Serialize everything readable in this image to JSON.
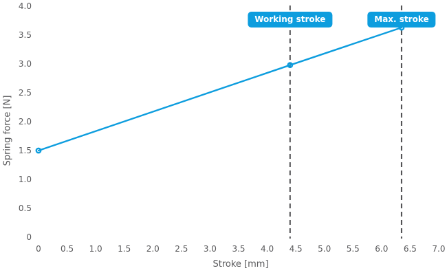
{
  "colors": {
    "accent_blue": "#0d9dde",
    "text_gray": "#58585a",
    "dash_gray": "#505052",
    "badge_text": "#ffffff",
    "background": "#ffffff"
  },
  "chart_data": {
    "type": "line",
    "title": "",
    "xlabel": "Stroke [mm]",
    "ylabel": "Spring force [N]",
    "xlim": [
      0,
      7.0
    ],
    "ylim": [
      0,
      4.0
    ],
    "grid": false,
    "legend": "none",
    "x_ticks": {
      "labels": [
        "0",
        "0.5",
        "1.0",
        "1.5",
        "2.0",
        "2.5",
        "3.0",
        "3.5",
        "4.0",
        "4.5",
        "5.0",
        "5.5",
        "6.0",
        "6.5",
        "7.0"
      ],
      "values": [
        0,
        0.5,
        1.0,
        1.5,
        2.0,
        2.5,
        3.0,
        3.5,
        4.0,
        4.5,
        5.0,
        5.5,
        6.0,
        6.5,
        7.0
      ]
    },
    "y_ticks": {
      "labels": [
        "4.0",
        "3.5",
        "3.0",
        "2.5",
        "2.0",
        "1.5",
        "1.0",
        "0.5",
        "0"
      ],
      "values": [
        4.0,
        3.5,
        3.0,
        2.5,
        2.0,
        1.5,
        1.0,
        0.5,
        0
      ]
    },
    "series": [
      {
        "name": "spring-characteristic",
        "x": [
          0,
          4.4,
          6.35
        ],
        "y": [
          1.5,
          2.98,
          3.63
        ],
        "marker": "open-circle",
        "line_width": 2.4
      }
    ],
    "annotations": [
      {
        "label": "Working stroke",
        "x": 4.4,
        "style": "vertical-dashed-line-with-badge"
      },
      {
        "label": "Max. stroke",
        "x": 6.35,
        "style": "vertical-dashed-line-with-badge"
      }
    ]
  }
}
